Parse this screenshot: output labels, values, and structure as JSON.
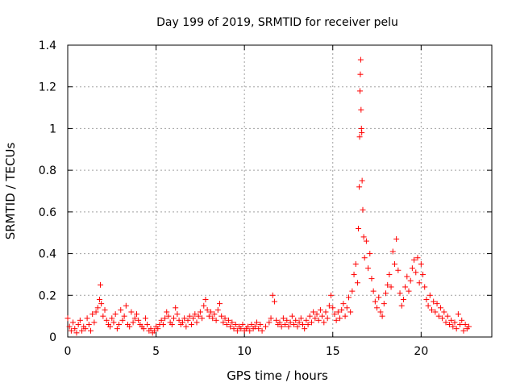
{
  "chart_data": {
    "type": "scatter",
    "title": "Day 199 of 2019, SRMTID for receiver pelu",
    "xlabel": "GPS time / hours",
    "ylabel": "SRMTID / TECUs",
    "xlim": [
      0,
      24
    ],
    "ylim": [
      0,
      1.4
    ],
    "xticks": [
      0,
      5,
      10,
      15,
      20
    ],
    "xtick_labels": [
      "0",
      "5",
      "10",
      "15",
      "20"
    ],
    "yticks": [
      0,
      0.2,
      0.4,
      0.6,
      0.8,
      1.0,
      1.2,
      1.4
    ],
    "ytick_labels": [
      "0",
      "0.2",
      "0.4",
      "0.6",
      "0.8",
      "1",
      "1.2",
      "1.4"
    ],
    "grid": true,
    "marker": "+",
    "color": "#ff0000",
    "series": [
      {
        "name": "SRMTID",
        "points": [
          [
            0.0,
            0.09
          ],
          [
            0.1,
            0.05
          ],
          [
            0.2,
            0.03
          ],
          [
            0.3,
            0.07
          ],
          [
            0.4,
            0.04
          ],
          [
            0.5,
            0.02
          ],
          [
            0.6,
            0.06
          ],
          [
            0.7,
            0.08
          ],
          [
            0.8,
            0.03
          ],
          [
            0.9,
            0.05
          ],
          [
            1.0,
            0.04
          ],
          [
            1.1,
            0.09
          ],
          [
            1.2,
            0.06
          ],
          [
            1.3,
            0.03
          ],
          [
            1.4,
            0.11
          ],
          [
            1.5,
            0.07
          ],
          [
            1.6,
            0.12
          ],
          [
            1.7,
            0.14
          ],
          [
            1.8,
            0.18
          ],
          [
            1.85,
            0.25
          ],
          [
            1.9,
            0.16
          ],
          [
            2.0,
            0.1
          ],
          [
            2.1,
            0.13
          ],
          [
            2.2,
            0.08
          ],
          [
            2.3,
            0.06
          ],
          [
            2.4,
            0.05
          ],
          [
            2.5,
            0.09
          ],
          [
            2.6,
            0.07
          ],
          [
            2.7,
            0.11
          ],
          [
            2.8,
            0.04
          ],
          [
            2.9,
            0.06
          ],
          [
            3.0,
            0.13
          ],
          [
            3.1,
            0.08
          ],
          [
            3.2,
            0.1
          ],
          [
            3.3,
            0.15
          ],
          [
            3.4,
            0.06
          ],
          [
            3.5,
            0.05
          ],
          [
            3.6,
            0.12
          ],
          [
            3.7,
            0.07
          ],
          [
            3.8,
            0.09
          ],
          [
            3.9,
            0.11
          ],
          [
            4.0,
            0.08
          ],
          [
            4.1,
            0.06
          ],
          [
            4.2,
            0.05
          ],
          [
            4.3,
            0.04
          ],
          [
            4.4,
            0.09
          ],
          [
            4.5,
            0.06
          ],
          [
            4.6,
            0.03
          ],
          [
            4.7,
            0.04
          ],
          [
            4.8,
            0.02
          ],
          [
            4.9,
            0.03
          ],
          [
            5.0,
            0.05
          ],
          [
            5.1,
            0.04
          ],
          [
            5.2,
            0.06
          ],
          [
            5.3,
            0.08
          ],
          [
            5.4,
            0.06
          ],
          [
            5.5,
            0.09
          ],
          [
            5.6,
            0.12
          ],
          [
            5.7,
            0.1
          ],
          [
            5.8,
            0.07
          ],
          [
            5.9,
            0.06
          ],
          [
            6.0,
            0.09
          ],
          [
            6.1,
            0.14
          ],
          [
            6.2,
            0.11
          ],
          [
            6.3,
            0.08
          ],
          [
            6.4,
            0.06
          ],
          [
            6.5,
            0.07
          ],
          [
            6.6,
            0.09
          ],
          [
            6.7,
            0.05
          ],
          [
            6.8,
            0.08
          ],
          [
            6.9,
            0.1
          ],
          [
            7.0,
            0.06
          ],
          [
            7.1,
            0.09
          ],
          [
            7.2,
            0.11
          ],
          [
            7.3,
            0.07
          ],
          [
            7.4,
            0.1
          ],
          [
            7.5,
            0.12
          ],
          [
            7.6,
            0.09
          ],
          [
            7.7,
            0.15
          ],
          [
            7.8,
            0.18
          ],
          [
            7.9,
            0.13
          ],
          [
            8.0,
            0.1
          ],
          [
            8.1,
            0.12
          ],
          [
            8.2,
            0.09
          ],
          [
            8.3,
            0.11
          ],
          [
            8.4,
            0.08
          ],
          [
            8.5,
            0.13
          ],
          [
            8.6,
            0.16
          ],
          [
            8.7,
            0.1
          ],
          [
            8.8,
            0.07
          ],
          [
            8.9,
            0.09
          ],
          [
            9.0,
            0.06
          ],
          [
            9.1,
            0.08
          ],
          [
            9.2,
            0.05
          ],
          [
            9.3,
            0.07
          ],
          [
            9.4,
            0.04
          ],
          [
            9.5,
            0.06
          ],
          [
            9.6,
            0.03
          ],
          [
            9.7,
            0.05
          ],
          [
            9.8,
            0.04
          ],
          [
            9.9,
            0.06
          ],
          [
            10.0,
            0.03
          ],
          [
            10.1,
            0.04
          ],
          [
            10.2,
            0.05
          ],
          [
            10.3,
            0.03
          ],
          [
            10.4,
            0.06
          ],
          [
            10.5,
            0.04
          ],
          [
            10.6,
            0.05
          ],
          [
            10.7,
            0.07
          ],
          [
            10.8,
            0.04
          ],
          [
            10.9,
            0.06
          ],
          [
            11.0,
            0.03
          ],
          [
            11.2,
            0.05
          ],
          [
            11.4,
            0.07
          ],
          [
            11.5,
            0.09
          ],
          [
            11.6,
            0.2
          ],
          [
            11.7,
            0.17
          ],
          [
            11.8,
            0.08
          ],
          [
            11.9,
            0.06
          ],
          [
            12.0,
            0.07
          ],
          [
            12.1,
            0.05
          ],
          [
            12.2,
            0.09
          ],
          [
            12.3,
            0.06
          ],
          [
            12.4,
            0.08
          ],
          [
            12.5,
            0.05
          ],
          [
            12.6,
            0.07
          ],
          [
            12.7,
            0.1
          ],
          [
            12.8,
            0.06
          ],
          [
            12.9,
            0.08
          ],
          [
            13.0,
            0.05
          ],
          [
            13.1,
            0.07
          ],
          [
            13.2,
            0.09
          ],
          [
            13.3,
            0.06
          ],
          [
            13.4,
            0.04
          ],
          [
            13.5,
            0.08
          ],
          [
            13.6,
            0.06
          ],
          [
            13.7,
            0.1
          ],
          [
            13.8,
            0.07
          ],
          [
            13.9,
            0.12
          ],
          [
            14.0,
            0.09
          ],
          [
            14.1,
            0.11
          ],
          [
            14.2,
            0.08
          ],
          [
            14.3,
            0.13
          ],
          [
            14.4,
            0.1
          ],
          [
            14.5,
            0.07
          ],
          [
            14.6,
            0.12
          ],
          [
            14.7,
            0.09
          ],
          [
            14.8,
            0.15
          ],
          [
            14.9,
            0.2
          ],
          [
            15.0,
            0.14
          ],
          [
            15.1,
            0.11
          ],
          [
            15.2,
            0.08
          ],
          [
            15.3,
            0.12
          ],
          [
            15.4,
            0.09
          ],
          [
            15.5,
            0.13
          ],
          [
            15.6,
            0.16
          ],
          [
            15.7,
            0.1
          ],
          [
            15.8,
            0.14
          ],
          [
            15.9,
            0.19
          ],
          [
            16.0,
            0.12
          ],
          [
            16.1,
            0.22
          ],
          [
            16.2,
            0.3
          ],
          [
            16.3,
            0.35
          ],
          [
            16.4,
            0.26
          ],
          [
            16.45,
            0.52
          ],
          [
            16.5,
            0.72
          ],
          [
            16.52,
            0.96
          ],
          [
            16.54,
            1.18
          ],
          [
            16.56,
            1.26
          ],
          [
            16.58,
            1.33
          ],
          [
            16.6,
            1.09
          ],
          [
            16.62,
            1.0
          ],
          [
            16.64,
            0.98
          ],
          [
            16.66,
            0.75
          ],
          [
            16.7,
            0.61
          ],
          [
            16.75,
            0.48
          ],
          [
            16.8,
            0.38
          ],
          [
            16.9,
            0.46
          ],
          [
            17.0,
            0.33
          ],
          [
            17.1,
            0.4
          ],
          [
            17.2,
            0.28
          ],
          [
            17.3,
            0.22
          ],
          [
            17.4,
            0.17
          ],
          [
            17.5,
            0.14
          ],
          [
            17.6,
            0.19
          ],
          [
            17.7,
            0.12
          ],
          [
            17.8,
            0.1
          ],
          [
            17.9,
            0.16
          ],
          [
            18.0,
            0.21
          ],
          [
            18.1,
            0.25
          ],
          [
            18.2,
            0.3
          ],
          [
            18.3,
            0.24
          ],
          [
            18.4,
            0.41
          ],
          [
            18.5,
            0.35
          ],
          [
            18.6,
            0.47
          ],
          [
            18.7,
            0.32
          ],
          [
            18.8,
            0.21
          ],
          [
            18.9,
            0.15
          ],
          [
            19.0,
            0.18
          ],
          [
            19.1,
            0.24
          ],
          [
            19.2,
            0.29
          ],
          [
            19.3,
            0.22
          ],
          [
            19.4,
            0.27
          ],
          [
            19.5,
            0.33
          ],
          [
            19.6,
            0.37
          ],
          [
            19.7,
            0.31
          ],
          [
            19.8,
            0.38
          ],
          [
            19.9,
            0.26
          ],
          [
            20.0,
            0.35
          ],
          [
            20.1,
            0.3
          ],
          [
            20.2,
            0.24
          ],
          [
            20.3,
            0.18
          ],
          [
            20.4,
            0.15
          ],
          [
            20.5,
            0.2
          ],
          [
            20.6,
            0.13
          ],
          [
            20.7,
            0.17
          ],
          [
            20.8,
            0.12
          ],
          [
            20.9,
            0.16
          ],
          [
            21.0,
            0.1
          ],
          [
            21.1,
            0.14
          ],
          [
            21.2,
            0.09
          ],
          [
            21.3,
            0.12
          ],
          [
            21.4,
            0.07
          ],
          [
            21.5,
            0.1
          ],
          [
            21.6,
            0.06
          ],
          [
            21.7,
            0.08
          ],
          [
            21.8,
            0.05
          ],
          [
            21.9,
            0.07
          ],
          [
            22.0,
            0.04
          ],
          [
            22.1,
            0.11
          ],
          [
            22.2,
            0.06
          ],
          [
            22.3,
            0.08
          ],
          [
            22.4,
            0.03
          ],
          [
            22.5,
            0.06
          ],
          [
            22.6,
            0.04
          ],
          [
            22.7,
            0.05
          ]
        ]
      }
    ]
  }
}
